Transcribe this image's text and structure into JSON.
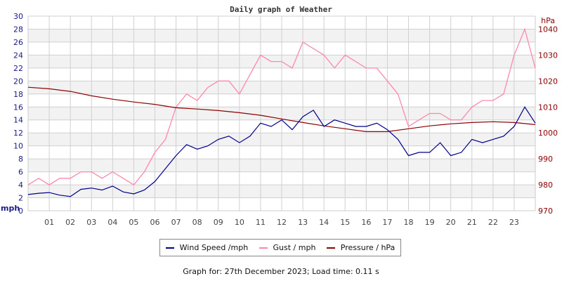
{
  "chart_data": {
    "type": "line",
    "title": "Daily graph of Weather",
    "x_unit": "hour",
    "x_ticks": [
      "01",
      "02",
      "03",
      "04",
      "05",
      "06",
      "07",
      "08",
      "09",
      "10",
      "11",
      "12",
      "13",
      "14",
      "15",
      "16",
      "17",
      "18",
      "19",
      "20",
      "21",
      "22",
      "23"
    ],
    "xlim": [
      0,
      24
    ],
    "left_axis": {
      "label": "mph",
      "ylim": [
        0,
        30
      ],
      "ticks": [
        0,
        2,
        4,
        6,
        8,
        10,
        12,
        14,
        16,
        18,
        20,
        22,
        24,
        26,
        28,
        30
      ]
    },
    "right_axis": {
      "label": "hPa",
      "ylim": [
        970,
        1045
      ],
      "ticks": [
        970,
        980,
        990,
        1000,
        1010,
        1020,
        1030,
        1040
      ]
    },
    "grid": true,
    "legend_position": "bottom",
    "series": [
      {
        "name": "Wind Speed /mph",
        "axis": "left",
        "color": "#00008b",
        "x_step_hours": 0.5,
        "values": [
          2.5,
          2.7,
          2.8,
          2.4,
          2.2,
          3.3,
          3.5,
          3.2,
          3.8,
          2.9,
          2.6,
          3.2,
          4.5,
          6.5,
          8.5,
          10.2,
          9.5,
          10.0,
          11.0,
          11.5,
          10.5,
          11.5,
          13.5,
          13.0,
          14.0,
          12.5,
          14.5,
          15.5,
          13.0,
          14.0,
          13.5,
          13.0,
          13.0,
          13.5,
          12.5,
          11.0,
          8.5,
          9.0,
          9.0,
          10.5,
          8.5,
          9.0,
          11.0,
          10.5,
          11.0,
          11.5,
          13.0,
          16.0,
          13.5
        ]
      },
      {
        "name": "Gust / mph",
        "axis": "left",
        "color": "#ff88aa",
        "x_step_hours": 0.5,
        "values": [
          4,
          5,
          4,
          5,
          5,
          6,
          6,
          5,
          6,
          5,
          4,
          6,
          9,
          11,
          16,
          18,
          17,
          19,
          20,
          20,
          18,
          21,
          24,
          23,
          23,
          22,
          26,
          25,
          24,
          22,
          24,
          23,
          22,
          22,
          20,
          18,
          13,
          14,
          15,
          15,
          14,
          14,
          16,
          17,
          17,
          18,
          24,
          28,
          22
        ]
      },
      {
        "name": "Pressure / hPa",
        "axis": "right",
        "color": "#8b0000",
        "x_step_hours": 1,
        "values": [
          1017.6,
          1017.0,
          1016.0,
          1014.3,
          1013.0,
          1011.9,
          1011.0,
          1009.7,
          1009.2,
          1008.6,
          1007.8,
          1006.8,
          1005.4,
          1004.0,
          1002.7,
          1001.6,
          1000.5,
          1000.5,
          1001.6,
          1002.7,
          1003.5,
          1004.0,
          1004.3,
          1004.0,
          1003.2
        ]
      }
    ]
  },
  "footer": "Graph for: 27th December 2023; Load time: 0.11 s"
}
